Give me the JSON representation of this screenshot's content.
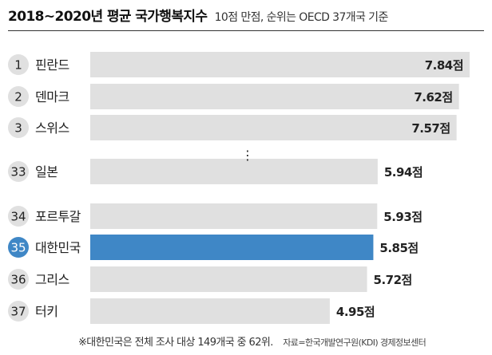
{
  "header": {
    "title": "2018~2020년 평균 국가행복지수",
    "subtitle": "10점 만점, 순위는 OECD 37개국 기준"
  },
  "chart_data": {
    "type": "bar",
    "orientation": "horizontal",
    "xlim": [
      0,
      10
    ],
    "value_suffix": "점",
    "ellipsis": "⋮",
    "bars": [
      {
        "rank": "1",
        "country": "핀란드",
        "value": 7.84,
        "label": "7.84점"
      },
      {
        "rank": "2",
        "country": "덴마크",
        "value": 7.62,
        "label": "7.62점"
      },
      {
        "rank": "3",
        "country": "스위스",
        "value": 7.57,
        "label": "7.57점"
      },
      {
        "rank": "33",
        "country": "일본",
        "value": 5.94,
        "label": "5.94점"
      },
      {
        "rank": "34",
        "country": "포르투갈",
        "value": 5.93,
        "label": "5.93점"
      },
      {
        "rank": "35",
        "country": "대한민국",
        "value": 5.85,
        "label": "5.85점",
        "highlight": true
      },
      {
        "rank": "36",
        "country": "그리스",
        "value": 5.72,
        "label": "5.72점"
      },
      {
        "rank": "37",
        "country": "터키",
        "value": 4.95,
        "label": "4.95점"
      }
    ],
    "colors": {
      "bar": "#e0e0e0",
      "bar_highlight": "#3f87c6",
      "badge": "#e0e0e0",
      "badge_highlight": "#3f87c6",
      "text": "#222222",
      "badge_text_highlight": "#ffffff"
    }
  },
  "footer": {
    "note": "※대한민국은 전체 조사 대상 149개국 중 62위.",
    "source": "자료=한국개발연구원(KDI) 경제정보센터"
  }
}
